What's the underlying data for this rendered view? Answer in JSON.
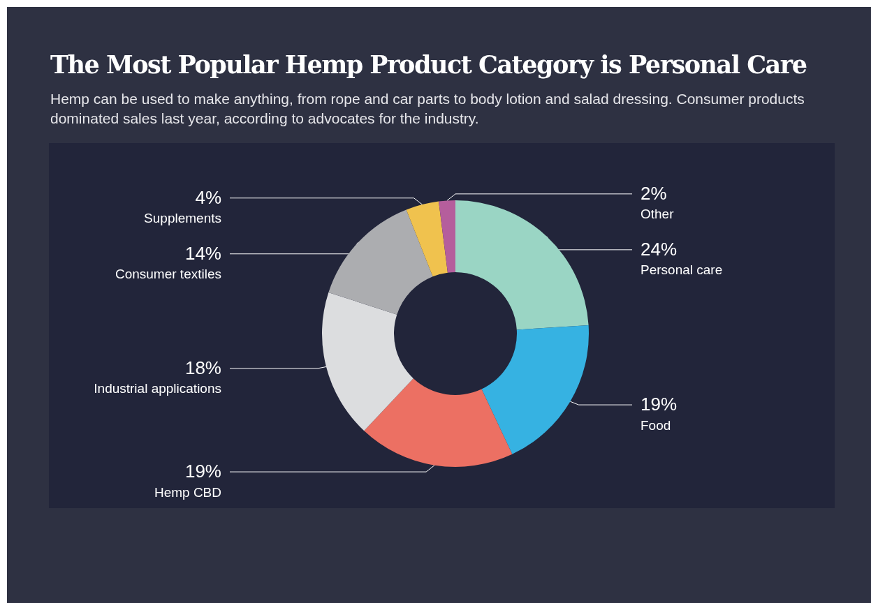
{
  "chart_data": {
    "type": "donut",
    "title": "The Most Popular Hemp Product Category is Personal Care",
    "subtitle": "Hemp can be used to make anything, from rope and car parts to body lotion and salad dressing. Consumer products dominated sales last year, according to advocates for the industry.",
    "categories": [
      "Personal care",
      "Food",
      "Hemp CBD",
      "Industrial applications",
      "Consumer textiles",
      "Supplements",
      "Other"
    ],
    "values": [
      24,
      19,
      19,
      18,
      14,
      4,
      2
    ],
    "value_labels": [
      "24%",
      "19%",
      "19%",
      "18%",
      "14%",
      "4%",
      "2%"
    ],
    "colors": [
      "#9ad5c4",
      "#36b2e2",
      "#ec7063",
      "#dcdddf",
      "#acadb0",
      "#f0c24e",
      "#b55e9c"
    ],
    "legend": false
  }
}
